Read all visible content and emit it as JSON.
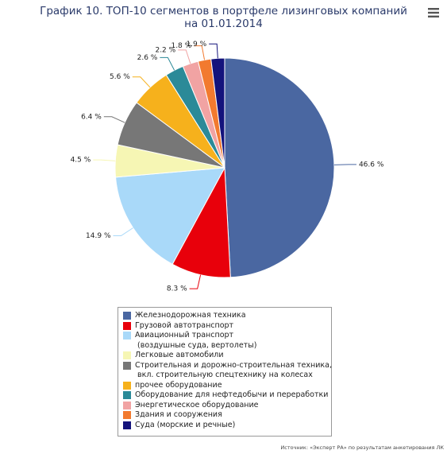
{
  "chart_data": {
    "type": "pie",
    "title": "График 10. ТОП-10 сегментов в портфеле лизинговых компаний на 01.01.2014",
    "categories": [
      "Железнодорожная техника",
      "Грузовой автотранспорт",
      "Авиационный транспорт\n (воздушные суда, вертолеты)",
      "Легковые автомобили",
      "Строительная и дорожно-строительная техника,\n вкл. строительную спецтехнику на колесах",
      "прочее оборудование",
      "Оборудование для нефтедобычи и переработки",
      "Энергетическое оборудование",
      "Здания и сооружения",
      "Суда (морские и речные)"
    ],
    "values": [
      46.6,
      8.3,
      14.9,
      4.5,
      6.4,
      5.6,
      2.6,
      2.2,
      1.8,
      1.9
    ],
    "value_labels": [
      "46.6 %",
      "8.3 %",
      "14.9 %",
      "4.5 %",
      "6.4 %",
      "5.6 %",
      "2.6 %",
      "2.2 %",
      "1.8 %",
      "1.9 %"
    ],
    "colors": [
      "#4a67a1",
      "#e8000b",
      "#a9d9f9",
      "#f6f6b4",
      "#777777",
      "#f6b11c",
      "#2b8a98",
      "#f1a3a3",
      "#f27a2f",
      "#14137c"
    ],
    "source": "Источник: «Эксперт РА» по результатам анкетирования ЛК"
  }
}
